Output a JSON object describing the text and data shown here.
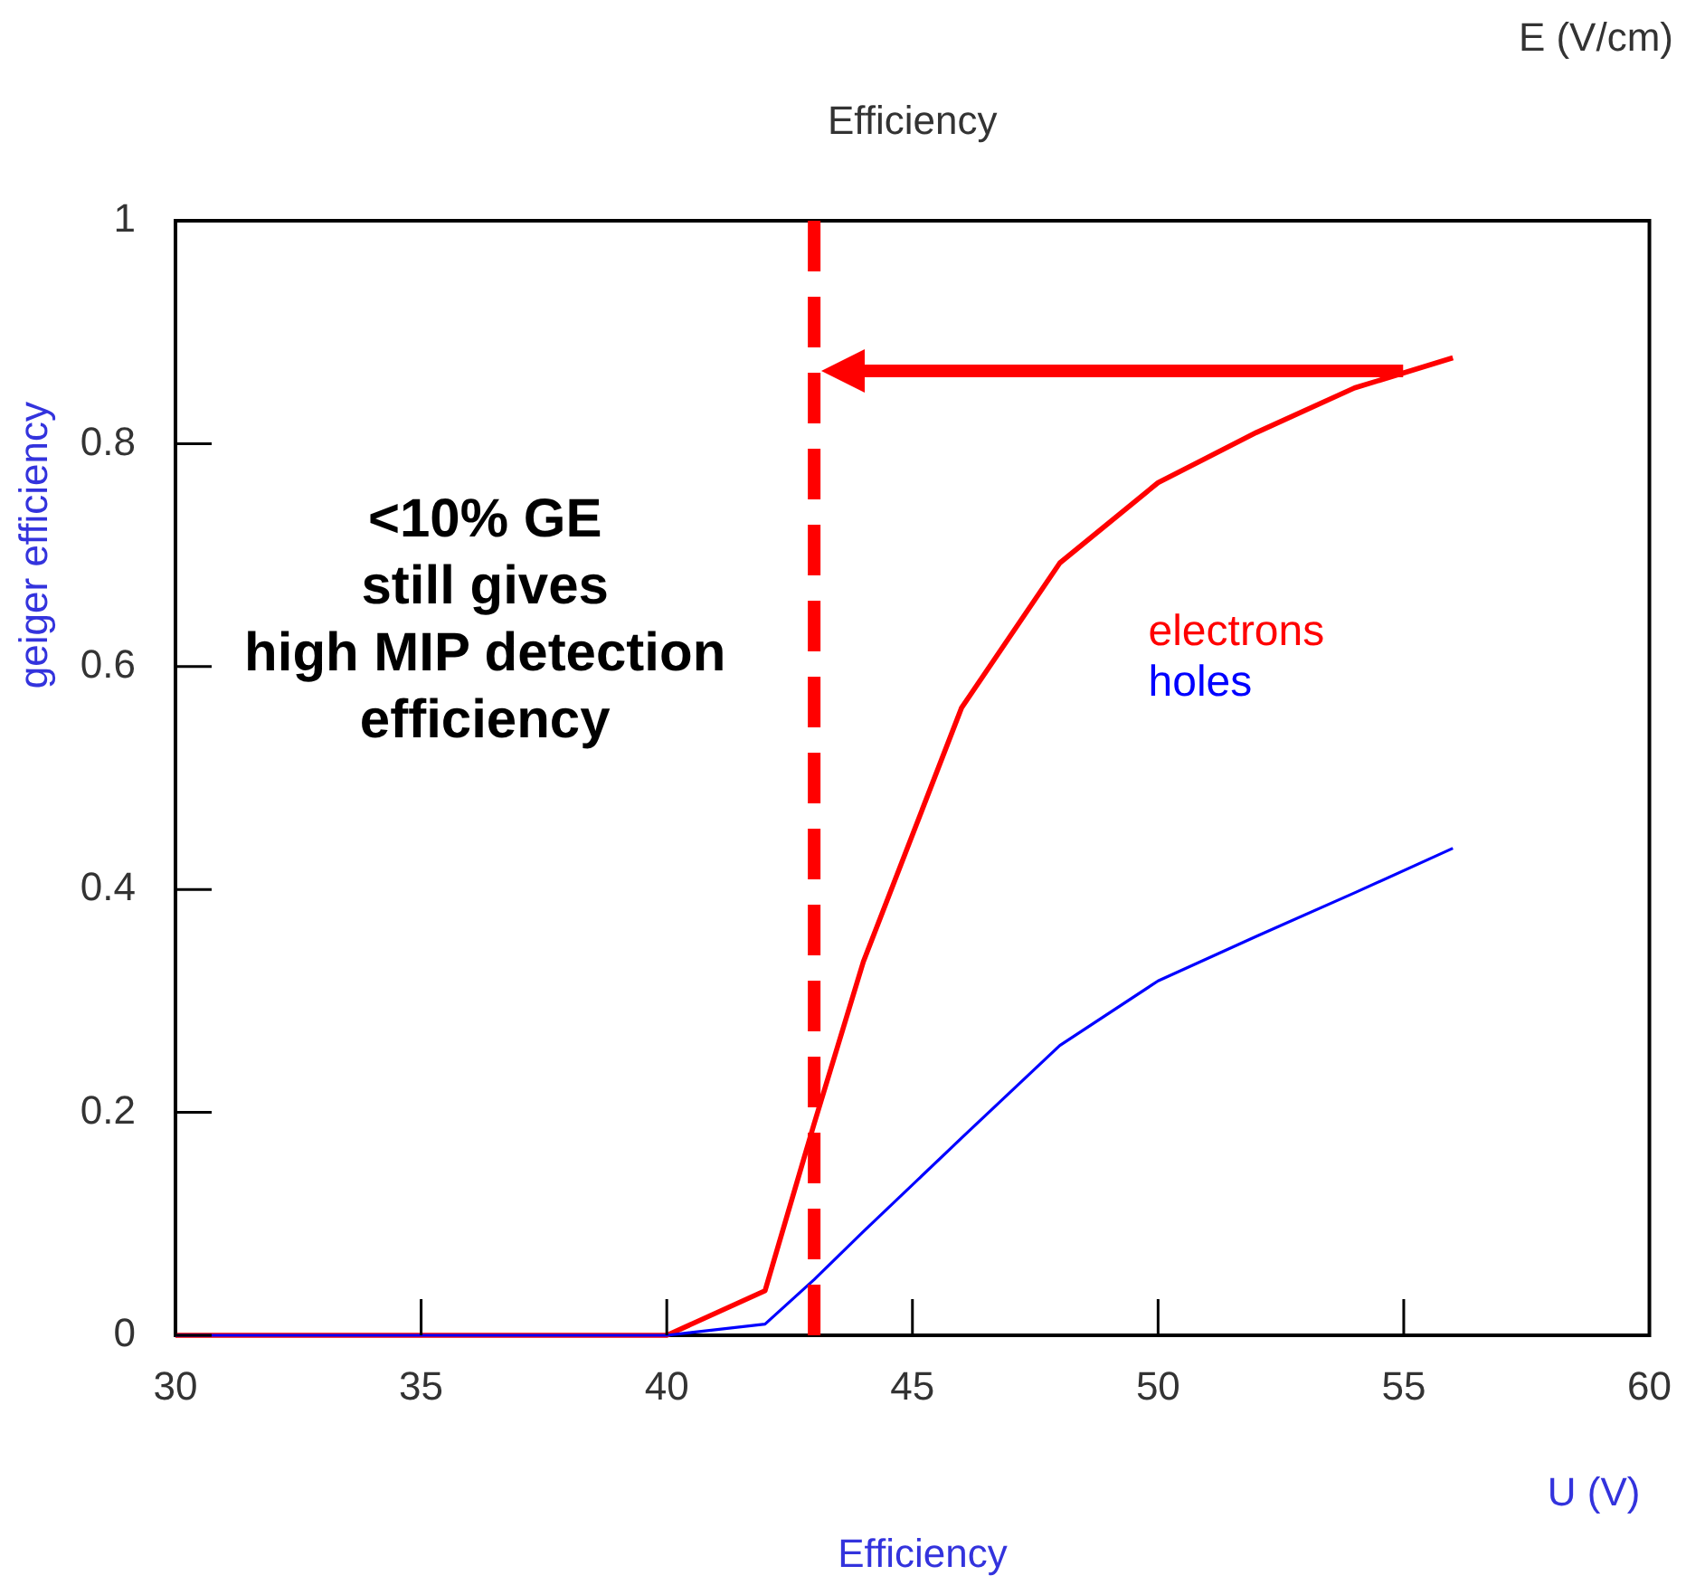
{
  "chart_data": {
    "type": "line",
    "title": "Efficiency",
    "xlabel": "U (V)",
    "ylabel": "geiger efficiency",
    "x": [
      30,
      32,
      34,
      36,
      38,
      40,
      42,
      43,
      44,
      46,
      48,
      50,
      52,
      54,
      56
    ],
    "series": [
      {
        "name": "electrons",
        "color": "#ff0000",
        "values": [
          0,
          0,
          0,
          0,
          0,
          0,
          0.04,
          0.19,
          0.335,
          0.563,
          0.693,
          0.765,
          0.81,
          0.85,
          0.877
        ]
      },
      {
        "name": "holes",
        "color": "#0000ff",
        "values": [
          0,
          0,
          0,
          0,
          0,
          0,
          0.01,
          0.05,
          0.093,
          0.177,
          0.26,
          0.318,
          0.358,
          0.397,
          0.437
        ]
      }
    ],
    "xlim": [
      30,
      60
    ],
    "xticks": [
      30,
      35,
      40,
      45,
      50,
      55,
      60
    ],
    "ylim": [
      0,
      1
    ],
    "yticks": [
      0,
      0.2,
      0.4,
      0.6,
      0.8,
      1
    ],
    "ref_lines": [
      {
        "axis": "x",
        "value": 43,
        "color": "#ff0000",
        "line_style": "dashed"
      }
    ],
    "annotations": [
      "<10% GE\nstill gives\nhigh MIP detection\nefficiency",
      "E (V/cm)",
      "Efficiency"
    ],
    "legend": "right",
    "grid": false,
    "marker": "none",
    "line_style": "solid"
  }
}
